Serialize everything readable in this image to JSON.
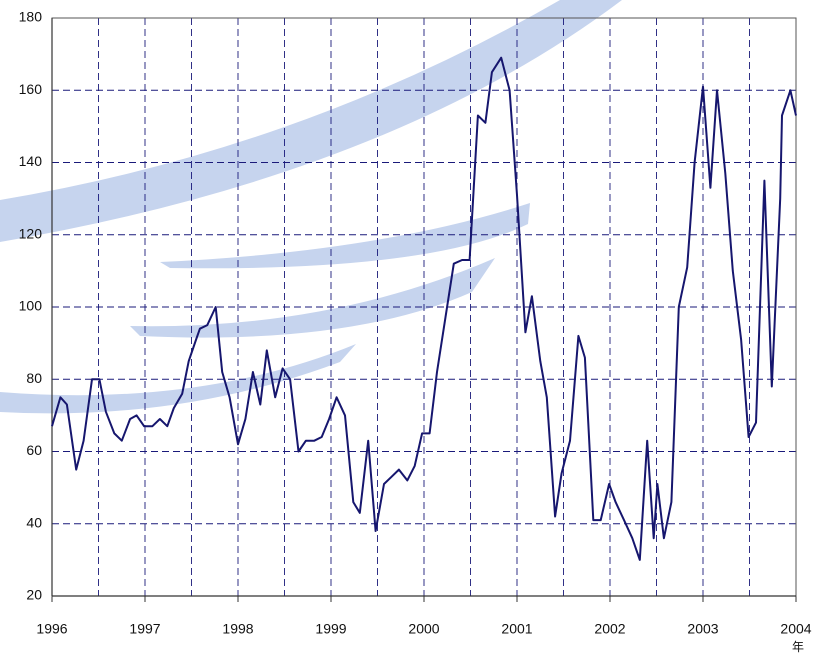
{
  "chart_data": {
    "type": "line",
    "x": [
      1996.0,
      1996.09,
      1996.16,
      1996.26,
      1996.34,
      1996.43,
      1996.51,
      1996.58,
      1996.67,
      1996.75,
      1996.84,
      1996.91,
      1996.99,
      1997.08,
      1997.16,
      1997.24,
      1997.31,
      1997.4,
      1997.47,
      1997.55,
      1997.59,
      1997.67,
      1997.76,
      1997.83,
      1997.91,
      1998.0,
      1998.08,
      1998.16,
      1998.24,
      1998.31,
      1998.4,
      1998.48,
      1998.56,
      1998.65,
      1998.73,
      1998.82,
      1998.9,
      1998.98,
      1999.06,
      1999.15,
      1999.24,
      1999.31,
      1999.4,
      1999.48,
      1999.57,
      1999.65,
      1999.73,
      1999.82,
      1999.9,
      1999.98,
      2000.06,
      2000.14,
      2000.23,
      2000.32,
      2000.41,
      2000.49,
      2000.58,
      2000.66,
      2000.73,
      2000.83,
      2000.92,
      2001.0,
      2001.09,
      2001.16,
      2001.25,
      2001.32,
      2001.41,
      2001.48,
      2001.57,
      2001.66,
      2001.73,
      2001.82,
      2001.9,
      2001.99,
      2002.06,
      2002.15,
      2002.24,
      2002.32,
      2002.4,
      2002.47,
      2002.51,
      2002.58,
      2002.66,
      2002.74,
      2002.83,
      2002.91,
      2003.0,
      2003.08,
      2003.15,
      2003.24,
      2003.32,
      2003.41,
      2003.49,
      2003.57,
      2003.66,
      2003.74,
      2003.83,
      2003.85,
      2003.94,
      2004.0
    ],
    "values": [
      67,
      75,
      73,
      55,
      63,
      80,
      80,
      71,
      65,
      63,
      69,
      70,
      67,
      67,
      69,
      67,
      72,
      76,
      85,
      91,
      94,
      95,
      100,
      82,
      75,
      62,
      69,
      82,
      73,
      88,
      75,
      83,
      80,
      60,
      63,
      63,
      64,
      69,
      75,
      70,
      46,
      43,
      63,
      38,
      51,
      53,
      55,
      52,
      56,
      65,
      65,
      82,
      97,
      112,
      113,
      113,
      153,
      151,
      165,
      169,
      160,
      131,
      93,
      103,
      85,
      75,
      42,
      54,
      63,
      92,
      86,
      41,
      41,
      51,
      46,
      41,
      36,
      30,
      63,
      36,
      51,
      36,
      46,
      100,
      111,
      140,
      161,
      133,
      160,
      137,
      110,
      91,
      64,
      68,
      135,
      78,
      130,
      153,
      160,
      153
    ],
    "color": "#16166e",
    "xlim": [
      1996,
      2004
    ],
    "xticks": [
      1996,
      1997,
      1998,
      1999,
      2000,
      2001,
      2002,
      2003,
      2004
    ],
    "ylim": [
      20,
      180
    ],
    "yticks": [
      20,
      40,
      60,
      80,
      100,
      120,
      140,
      160,
      180
    ],
    "grid": true,
    "x_unit_label": "年"
  }
}
